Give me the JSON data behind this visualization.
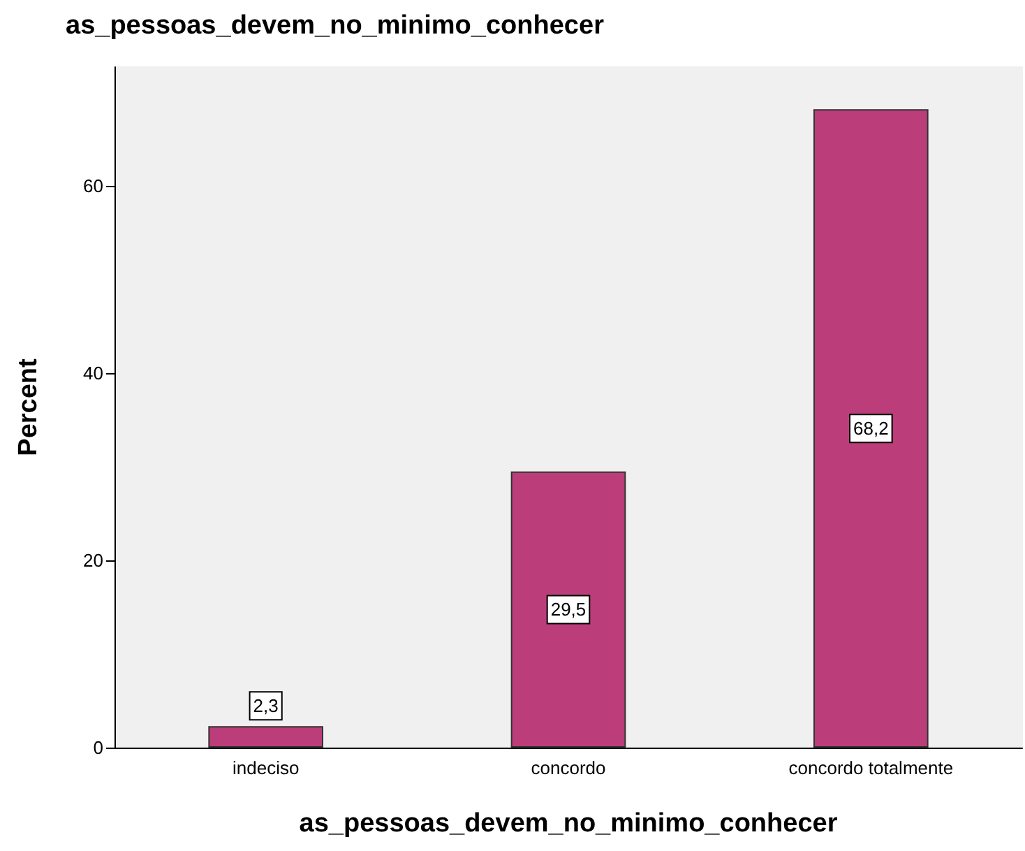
{
  "chart_data": {
    "type": "bar",
    "title": "as_pessoas_devem_no_minimo_conhecer",
    "xlabel": "as_pessoas_devem_no_minimo_conhecer",
    "ylabel": "Percent",
    "categories": [
      "indeciso",
      "concordo",
      "concordo totalmente"
    ],
    "values": [
      2.3,
      29.5,
      68.2
    ],
    "value_labels": [
      "2,3",
      "29,5",
      "68,2"
    ],
    "color": "#bb3d7a",
    "ylim": [
      0,
      72.7
    ],
    "yticks": [
      0,
      20,
      40,
      60
    ],
    "grid": false
  }
}
